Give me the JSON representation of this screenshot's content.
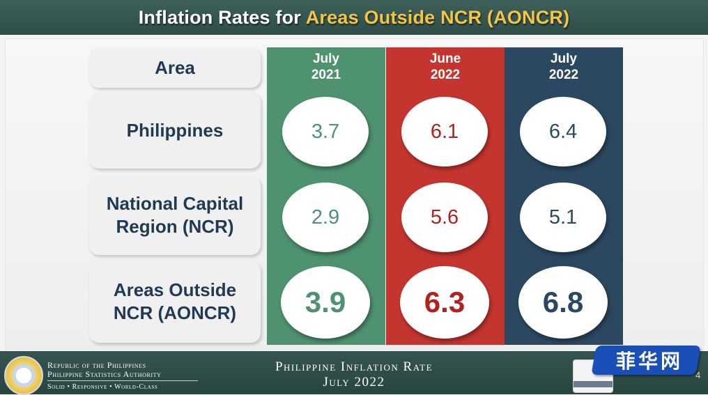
{
  "title": {
    "prefix": "Inflation Rates for",
    "highlight": "Areas Outside NCR (AONCR)"
  },
  "table": {
    "header_label": "Area",
    "columns": [
      {
        "line1": "July",
        "line2": "2021",
        "color": "#4e9270"
      },
      {
        "line1": "June",
        "line2": "2022",
        "color": "#c53530"
      },
      {
        "line1": "July",
        "line2": "2022",
        "color": "#2b4860"
      }
    ],
    "rows": [
      {
        "label_line1": "Philippines",
        "label_line2": "",
        "values": [
          "3.7",
          "6.1",
          "6.4"
        ]
      },
      {
        "label_line1": "National Capital",
        "label_line2": "Region (NCR)",
        "values": [
          "2.9",
          "5.6",
          "5.1"
        ]
      },
      {
        "label_line1": "Areas Outside",
        "label_line2": "NCR (AONCR)",
        "values": [
          "3.9",
          "6.3",
          "6.8"
        ]
      }
    ]
  },
  "footer": {
    "agency_line1": "Republic of the Philippines",
    "agency_line2": "Philippine Statistics Authority",
    "agency_motto": "Solid • Responsive • World-Class",
    "title_line1": "Philippine Inflation Rate",
    "title_line2": "July 2022",
    "slide_number": "4"
  },
  "watermark": {
    "text": "菲华网"
  },
  "icons": {
    "seal": "psa-seal-logo",
    "certification": "tuv-certified-badge"
  }
}
